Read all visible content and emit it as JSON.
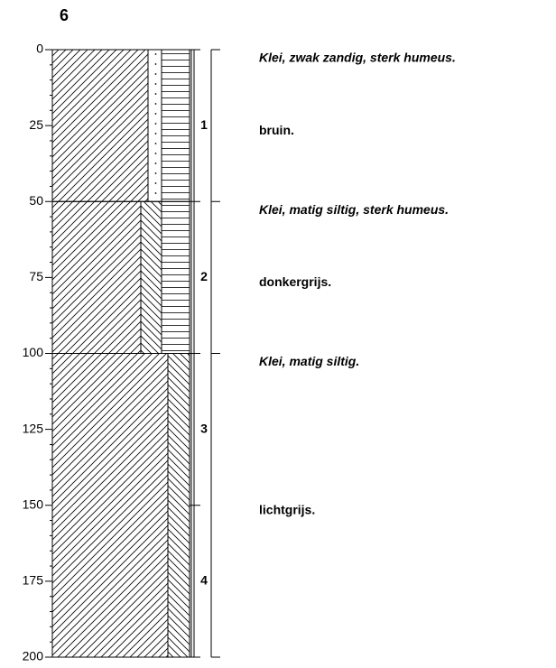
{
  "title": "6",
  "depth_axis": {
    "range": [
      0,
      200
    ],
    "ticks": [
      0,
      25,
      50,
      75,
      100,
      125,
      150,
      175,
      200
    ]
  },
  "layers": [
    {
      "top": 0,
      "bottom": 50
    },
    {
      "top": 50,
      "bottom": 100
    },
    {
      "top": 100,
      "bottom": 200
    }
  ],
  "samples": [
    {
      "label": "1",
      "top": 0,
      "bottom": 50
    },
    {
      "label": "2",
      "top": 50,
      "bottom": 100
    },
    {
      "label": "3",
      "top": 100,
      "bottom": 150
    },
    {
      "label": "4",
      "top": 150,
      "bottom": 200
    }
  ],
  "descriptions": [
    {
      "top": 0,
      "bottom": 50,
      "name": "Klei, zwak zandig, sterk humeus.",
      "color": "bruin."
    },
    {
      "top": 50,
      "bottom": 100,
      "name": "Klei, matig siltig, sterk humeus.",
      "color": "donkergrijs."
    },
    {
      "top": 100,
      "bottom": 200,
      "name": "Klei, matig siltig.",
      "color": "lichtgrijs."
    }
  ]
}
